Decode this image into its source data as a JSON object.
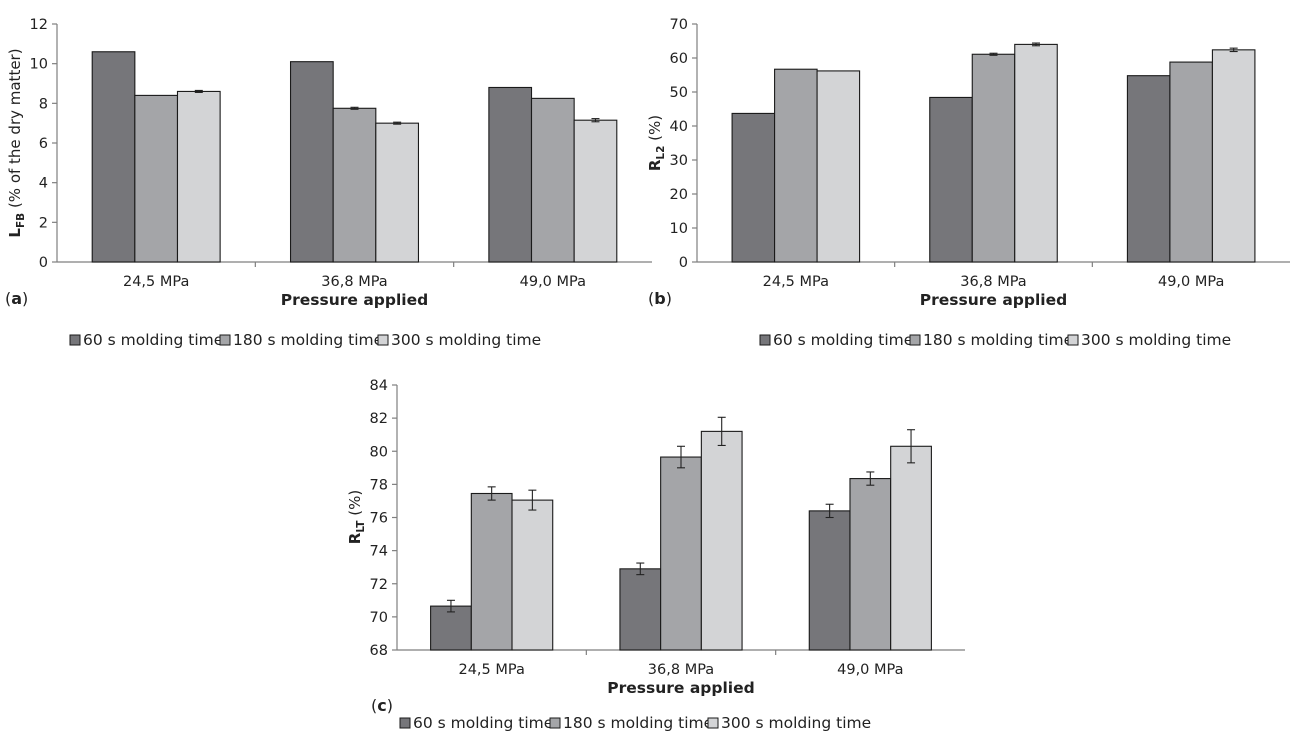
{
  "colors": {
    "s60": "#76767a",
    "s180": "#a4a5a8",
    "s300": "#d3d4d6",
    "axis": "#7f7f7f",
    "bar_edge": "#1a1a1a"
  },
  "chart_data": [
    {
      "id": "a",
      "type": "bar",
      "panel_label": "a",
      "categories": [
        "24,5 MPa",
        "36,8 MPa",
        "49,0 MPa"
      ],
      "series": [
        {
          "name": "60 s molding time",
          "values": [
            10.6,
            10.1,
            8.8
          ]
        },
        {
          "name": "180 s molding time",
          "values": [
            8.4,
            7.75,
            8.25
          ]
        },
        {
          "name": "300 s molding time",
          "values": [
            8.6,
            7.0,
            7.15
          ]
        }
      ],
      "errors": [
        [
          0,
          0,
          0
        ],
        [
          0,
          0.05,
          0
        ],
        [
          0.05,
          0.05,
          0.08
        ]
      ],
      "xlabel": "Pressure applied",
      "ylabel_main": "L",
      "ylabel_sub": "FB",
      "ylabel_rest": " (% of the dry matter)",
      "ylim": [
        0,
        12
      ],
      "yticks": [
        0,
        2,
        4,
        6,
        8,
        10,
        12
      ],
      "grid": false,
      "legend": "bottom"
    },
    {
      "id": "b",
      "type": "bar",
      "panel_label": "b",
      "categories": [
        "24,5 MPa",
        "36,8 MPa",
        "49,0 MPa"
      ],
      "series": [
        {
          "name": "60 s molding time",
          "values": [
            43.7,
            48.4,
            54.8
          ]
        },
        {
          "name": "180 s molding time",
          "values": [
            56.7,
            61.1,
            58.8
          ]
        },
        {
          "name": "300 s molding time",
          "values": [
            56.2,
            64.0,
            62.4
          ]
        }
      ],
      "errors": [
        [
          0,
          0,
          0
        ],
        [
          0,
          0.3,
          0
        ],
        [
          0,
          0.4,
          0.5
        ]
      ],
      "xlabel": "Pressure applied",
      "ylabel_main": "R",
      "ylabel_sub": "L2",
      "ylabel_rest": " (%)",
      "ylim": [
        0,
        70
      ],
      "yticks": [
        0,
        10,
        20,
        30,
        40,
        50,
        60,
        70
      ],
      "grid": false,
      "legend": "bottom"
    },
    {
      "id": "c",
      "type": "bar",
      "panel_label": "c",
      "categories": [
        "24,5 MPa",
        "36,8 MPa",
        "49,0 MPa"
      ],
      "series": [
        {
          "name": "60 s molding time",
          "values": [
            70.65,
            72.9,
            76.4
          ]
        },
        {
          "name": "180 s molding time",
          "values": [
            77.45,
            79.65,
            78.35
          ]
        },
        {
          "name": "300 s molding time",
          "values": [
            77.05,
            81.2,
            80.3
          ]
        }
      ],
      "errors": [
        [
          0.35,
          0.35,
          0.4
        ],
        [
          0.4,
          0.65,
          0.4
        ],
        [
          0.6,
          0.85,
          1.0
        ]
      ],
      "xlabel": "Pressure applied",
      "ylabel_main": "R",
      "ylabel_sub": "LT",
      "ylabel_rest": " (%)",
      "ylim": [
        68,
        84
      ],
      "yticks": [
        68,
        70,
        72,
        74,
        76,
        78,
        80,
        82,
        84
      ],
      "grid": false,
      "legend": "bottom"
    }
  ]
}
